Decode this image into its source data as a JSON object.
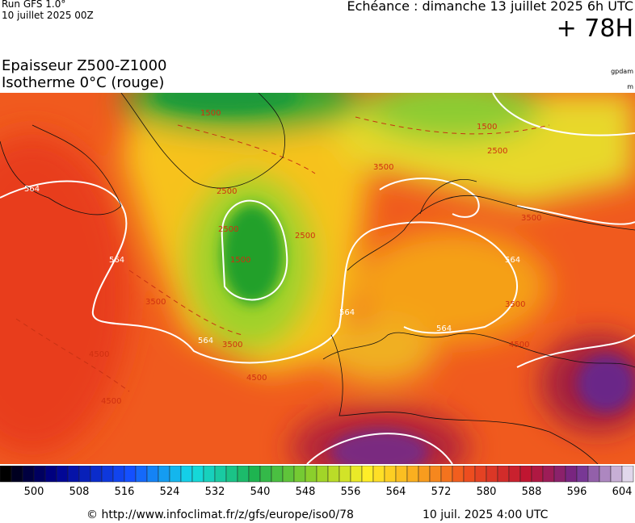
{
  "header": {
    "run": "Run GFS 1.0°",
    "run_date": "10 juillet 2025 00Z",
    "echeance": "Echéance : dimanche 13 juillet 2025 6h UTC",
    "hour": "+ 78H",
    "title": "Epaisseur Z500-Z1000",
    "subtitle": "Isotherme 0°C (rouge)",
    "unit_top": "gpdam",
    "unit_bottom": "m"
  },
  "map": {
    "contour_labels": [
      "564",
      "564",
      "564",
      "564",
      "564",
      "564",
      "3500",
      "3500",
      "3500",
      "3500",
      "3500",
      "2500",
      "2500",
      "2500",
      "2500",
      "1500",
      "1500",
      "1500",
      "4500",
      "4500",
      "4500",
      "4500"
    ]
  },
  "colorbar": {
    "labels": [
      500,
      508,
      516,
      524,
      532,
      540,
      548,
      556,
      564,
      572,
      580,
      588,
      596,
      604
    ]
  },
  "footer": {
    "url": "© http://www.infoclimat.fr/z/gfs/europe/iso0/78",
    "date": "10 juil. 2025  4:00 UTC"
  }
}
